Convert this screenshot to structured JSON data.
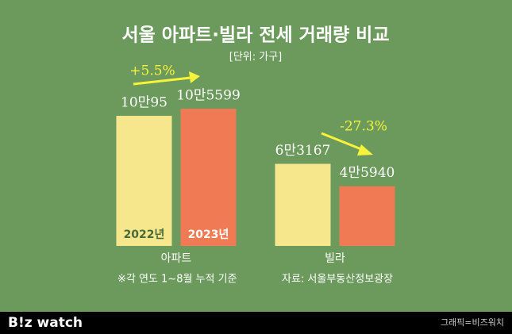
{
  "chart_data": {
    "type": "bar",
    "title": "서울 아파트·빌라 전세 거래량 비교",
    "subtitle": "[단위: 가구]",
    "categories": [
      "아파트",
      "빌라"
    ],
    "series": [
      {
        "name": "2022년",
        "color": "#f6e78c",
        "values": [
          100095,
          63167
        ],
        "value_labels": [
          "10만95",
          "6만3167"
        ]
      },
      {
        "name": "2023년",
        "color": "#ef7a54",
        "values": [
          105599,
          45940
        ],
        "value_labels": [
          "10만5599",
          "4만5940"
        ]
      }
    ],
    "annotations": [
      "+5.5%",
      "-27.3%"
    ],
    "notes": [
      "※각 연도 1~8월 누적 기준",
      "자료: 서울부동산정보광장"
    ]
  },
  "footer": {
    "logo": "B!z watch",
    "credit": "그래픽=비즈워치"
  }
}
